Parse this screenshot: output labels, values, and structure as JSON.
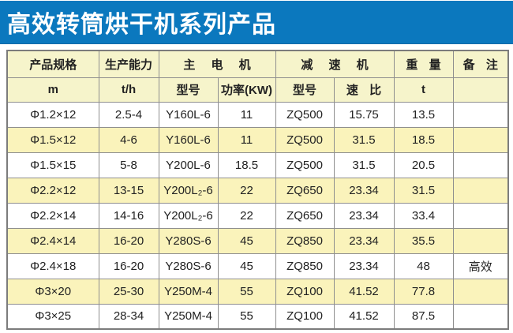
{
  "title": "高效转筒烘干机系列产品",
  "colors": {
    "title_bg": "#0b78be",
    "header_cell_bg": "#f6f4cb",
    "alt_row_bg": "#faf3bb",
    "grid_line": "#8f8f8f"
  },
  "table": {
    "header_row1": {
      "spec": "产品规格",
      "capacity": "生产能力",
      "main_motor": "主 电 机",
      "reducer": "减 速 机",
      "weight": "重 量",
      "remark": "备 注"
    },
    "header_row2": {
      "spec_unit": "m",
      "capacity_unit": "t/h",
      "motor_model": "型号",
      "motor_power": "功率(KW)",
      "reducer_model": "型号",
      "speed_ratio": "速 比",
      "weight_unit": "t",
      "remark": ""
    },
    "rows": [
      [
        "Φ1.2×12",
        "2.5-4",
        "Y160L-6",
        "11",
        "ZQ500",
        "15.75",
        "13.5",
        ""
      ],
      [
        "Φ1.5×12",
        "4-6",
        "Y160L-6",
        "11",
        "ZQ500",
        "31.5",
        "18.5",
        ""
      ],
      [
        "Φ1.5×15",
        "5-8",
        "Y200L-6",
        "18.5",
        "ZQ500",
        "31.5",
        "20.5",
        ""
      ],
      [
        "Φ2.2×12",
        "13-15",
        "Y200L₂-6",
        "22",
        "ZQ650",
        "23.34",
        "31.5",
        ""
      ],
      [
        "Φ2.2×14",
        "14-16",
        "Y200L₂-6",
        "22",
        "ZQ650",
        "23.34",
        "33.4",
        ""
      ],
      [
        "Φ2.4×14",
        "16-20",
        "Y280S-6",
        "45",
        "ZQ850",
        "23.34",
        "35.5",
        ""
      ],
      [
        "Φ2.4×18",
        "16-20",
        "Y280S-6",
        "45",
        "ZQ850",
        "23.34",
        "48",
        "高效"
      ],
      [
        "Φ3×20",
        "25-30",
        "Y250M-4",
        "55",
        "ZQ100",
        "41.52",
        "77.8",
        ""
      ],
      [
        "Φ3×25",
        "28-34",
        "Y250M-4",
        "55",
        "ZQ100",
        "41.52",
        "87.5",
        ""
      ]
    ]
  }
}
